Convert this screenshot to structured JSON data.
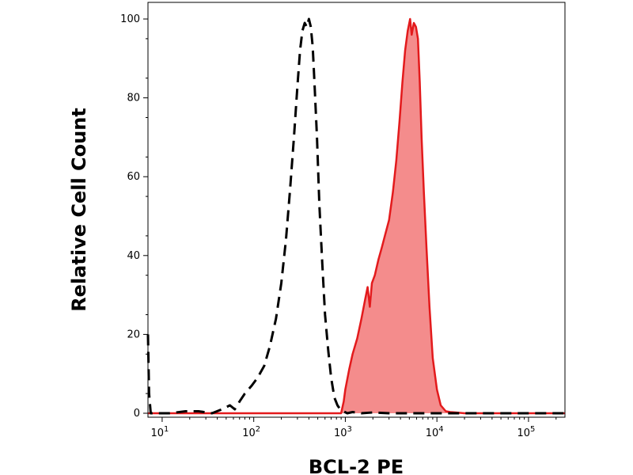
{
  "chart_data": {
    "type": "area",
    "title": "",
    "xlabel": "BCL-2 PE",
    "ylabel": "Relative Cell Count",
    "x_scale": "log",
    "xlim": [
      7,
      250000
    ],
    "ylim": [
      0,
      102
    ],
    "x_ticks": [
      {
        "value": 10,
        "base": "10",
        "exp": "1"
      },
      {
        "value": 100,
        "base": "10",
        "exp": "2"
      },
      {
        "value": 1000,
        "base": "10",
        "exp": "3"
      },
      {
        "value": 10000,
        "base": "10",
        "exp": "4"
      },
      {
        "value": 100000,
        "base": "10",
        "exp": "5"
      }
    ],
    "y_ticks": [
      {
        "value": 0,
        "label": "0"
      },
      {
        "value": 20,
        "label": "20"
      },
      {
        "value": 40,
        "label": "40"
      },
      {
        "value": 60,
        "label": "60"
      },
      {
        "value": 80,
        "label": "80"
      },
      {
        "value": 100,
        "label": "100"
      }
    ],
    "grid": false,
    "series": [
      {
        "style": "dashed line",
        "color": "#000000",
        "x": [
          7,
          7.2,
          7.5,
          8,
          12,
          18,
          25,
          35,
          45,
          55,
          62,
          70,
          80,
          95,
          110,
          130,
          150,
          175,
          200,
          225,
          250,
          275,
          300,
          320,
          340,
          360,
          380,
          400,
          420,
          440,
          460,
          490,
          520,
          560,
          600,
          650,
          700,
          760,
          820,
          880,
          950,
          1050,
          1200,
          1500,
          2000,
          3000,
          5000,
          10000,
          30000,
          100000,
          250000
        ],
        "y": [
          20,
          5,
          0,
          0,
          0,
          0.5,
          0.5,
          0,
          1,
          2,
          1,
          3,
          5,
          7,
          9,
          12,
          17,
          24,
          33,
          44,
          57,
          70,
          83,
          92,
          97,
          99,
          98,
          100,
          98,
          93,
          84,
          70,
          53,
          38,
          25,
          16,
          9,
          4,
          2,
          1,
          0.5,
          0,
          0.3,
          0,
          0.2,
          0,
          0,
          0,
          0,
          0,
          0
        ]
      },
      {
        "style": "filled area",
        "color": "#e31a1c",
        "fill": "#f48c8c",
        "x": [
          7,
          900,
          960,
          1000,
          1100,
          1200,
          1350,
          1500,
          1650,
          1750,
          1850,
          1950,
          2100,
          2300,
          2500,
          2700,
          3000,
          3300,
          3600,
          3900,
          4200,
          4500,
          4800,
          5100,
          5300,
          5600,
          5900,
          6200,
          6500,
          6800,
          7200,
          7700,
          8300,
          9000,
          10000,
          11000,
          12500,
          14000,
          16000,
          20000,
          50000,
          250000
        ],
        "y": [
          0,
          0,
          3,
          6,
          11,
          15,
          19,
          24,
          29,
          32,
          27,
          33,
          35,
          39,
          42,
          45,
          49,
          56,
          64,
          74,
          84,
          92,
          97,
          100,
          96,
          99,
          98,
          95,
          84,
          70,
          56,
          42,
          27,
          14,
          6,
          2,
          0.5,
          0.3,
          0.2,
          0,
          0,
          0
        ]
      }
    ]
  }
}
